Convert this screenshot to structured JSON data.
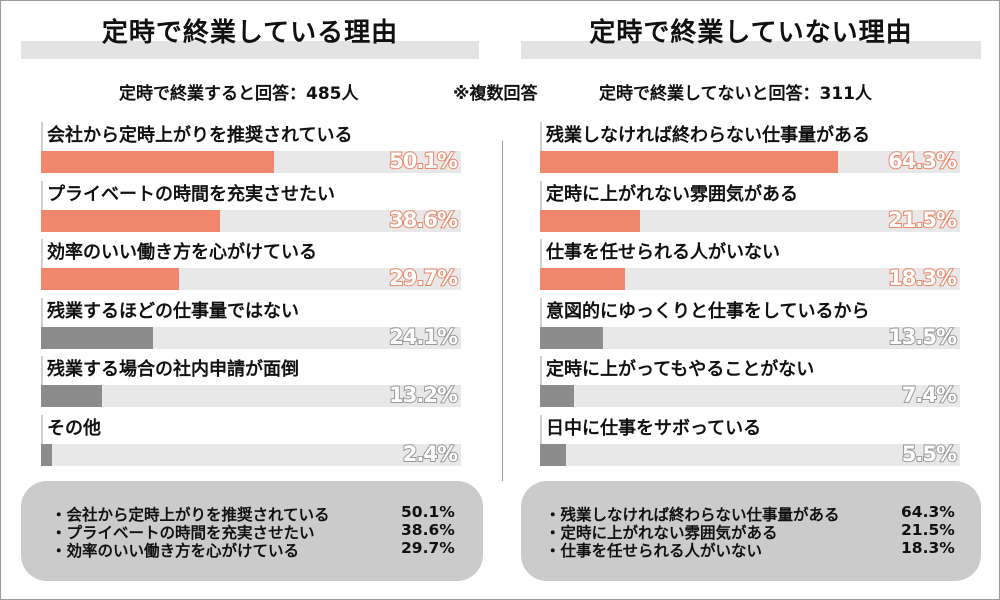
{
  "left": {
    "title": "定時で終業している理由",
    "respondents": "定時で終業すると回答：485人",
    "items": [
      {
        "label": "会社から定時上がりを推奨されている",
        "value": 50.1,
        "pct": "50.1%",
        "highlight": true
      },
      {
        "label": "プライベートの時間を充実させたい",
        "value": 38.6,
        "pct": "38.6%",
        "highlight": true
      },
      {
        "label": "効率のいい働き方を心がけている",
        "value": 29.7,
        "pct": "29.7%",
        "highlight": true
      },
      {
        "label": "残業するほどの仕事量ではない",
        "value": 24.1,
        "pct": "24.1%",
        "highlight": false
      },
      {
        "label": "残業する場合の社内申請が面倒",
        "value": 13.2,
        "pct": "13.2%",
        "highlight": false
      },
      {
        "label": "その他",
        "value": 2.4,
        "pct": "2.4%",
        "highlight": false
      }
    ],
    "summary": [
      {
        "label": "・会社から定時上がりを推奨されている",
        "pct": "50.1%"
      },
      {
        "label": "・プライベートの時間を充実させたい",
        "pct": "38.6%"
      },
      {
        "label": "・効率のいい働き方を心がけている",
        "pct": "29.7%"
      }
    ]
  },
  "center_note": "※複数回答",
  "right": {
    "title": "定時で終業していない理由",
    "respondents": "定時で終業してないと回答：311人",
    "items": [
      {
        "label": "残業しなければ終わらない仕事量がある",
        "value": 64.3,
        "pct": "64.3%",
        "highlight": true
      },
      {
        "label": "定時に上がれない雰囲気がある",
        "value": 21.5,
        "pct": "21.5%",
        "highlight": true
      },
      {
        "label": "仕事を任せられる人がいない",
        "value": 18.3,
        "pct": "18.3%",
        "highlight": true
      },
      {
        "label": "意図的にゆっくりと仕事をしているから",
        "value": 13.5,
        "pct": "13.5%",
        "highlight": false
      },
      {
        "label": "定時に上がってもやることがない",
        "value": 7.4,
        "pct": "7.4%",
        "highlight": false
      },
      {
        "label": "日中に仕事をサボっている",
        "value": 5.5,
        "pct": "5.5%",
        "highlight": false
      }
    ],
    "summary": [
      {
        "label": "・残業しなければ終わらない仕事量がある",
        "pct": "64.3%"
      },
      {
        "label": "・定時に上がれない雰囲気がある",
        "pct": "21.5%"
      },
      {
        "label": "・仕事を任せられる人がいない",
        "pct": "18.3%"
      }
    ]
  },
  "colors": {
    "highlight": "#f0876d",
    "muted": "#8c8c8c",
    "track": "#e8e8e8"
  },
  "chart_data": [
    {
      "type": "bar",
      "title": "定時で終業している理由",
      "categories": [
        "会社から定時上がりを推奨されている",
        "プライベートの時間を充実させたい",
        "効率のいい働き方を心がけている",
        "残業するほどの仕事量ではない",
        "残業する場合の社内申請が面倒",
        "その他"
      ],
      "values": [
        50.1,
        38.6,
        29.7,
        24.1,
        13.2,
        2.4
      ],
      "orientation": "horizontal",
      "xlim": [
        0,
        100
      ],
      "grid": false
    },
    {
      "type": "bar",
      "title": "定時で終業していない理由",
      "categories": [
        "残業しなければ終わらない仕事量がある",
        "定時に上がれない雰囲気がある",
        "仕事を任せられる人がいない",
        "意図的にゆっくりと仕事をしているから",
        "定時に上がってもやることがない",
        "日中に仕事をサボっている"
      ],
      "values": [
        64.3,
        21.5,
        18.3,
        13.5,
        7.4,
        5.5
      ],
      "orientation": "horizontal",
      "xlim": [
        0,
        100
      ],
      "grid": false
    }
  ]
}
